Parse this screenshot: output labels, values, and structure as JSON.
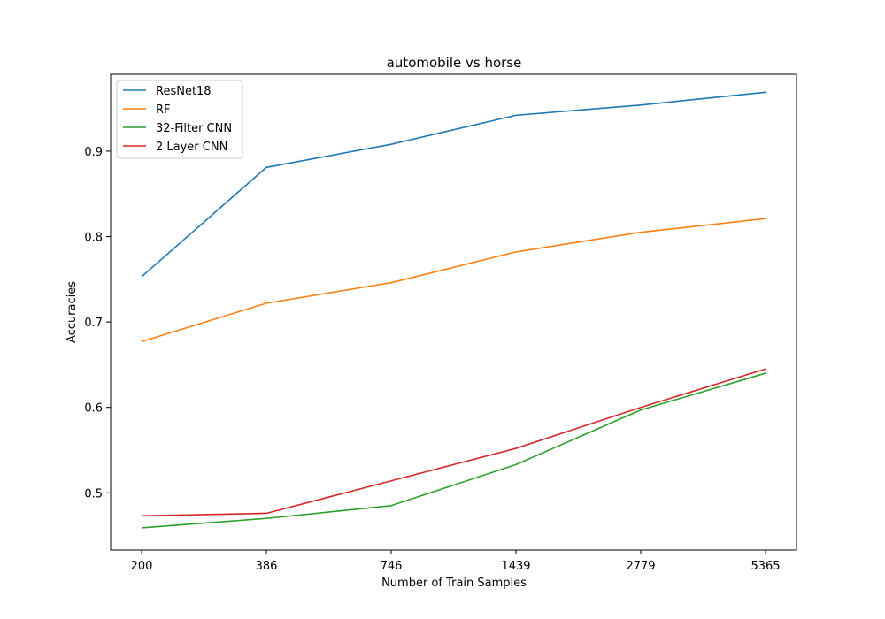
{
  "chart_data": {
    "type": "line",
    "title": "automobile vs horse",
    "xlabel": "Number of Train Samples",
    "ylabel": "Accuracies",
    "categories": [
      "200",
      "386",
      "746",
      "1439",
      "2779",
      "5365"
    ],
    "ylim": [
      0.433,
      0.99
    ],
    "yticks": [
      "0.5",
      "0.6",
      "0.7",
      "0.8",
      "0.9"
    ],
    "grid": false,
    "legend_position": "upper-left",
    "series": [
      {
        "name": "ResNet18",
        "color": "#1f77b4",
        "values": [
          0.753,
          0.881,
          0.908,
          0.942,
          0.954,
          0.969
        ]
      },
      {
        "name": "RF",
        "color": "#ff7f0e",
        "values": [
          0.677,
          0.722,
          0.746,
          0.782,
          0.805,
          0.821
        ]
      },
      {
        "name": "32-Filter CNN",
        "color": "#2ca02c",
        "values": [
          0.459,
          0.47,
          0.485,
          0.533,
          0.597,
          0.64
        ]
      },
      {
        "name": "2 Layer CNN",
        "color": "#d62728",
        "values": [
          0.473,
          0.476,
          0.514,
          0.552,
          0.6,
          0.645
        ]
      }
    ]
  }
}
